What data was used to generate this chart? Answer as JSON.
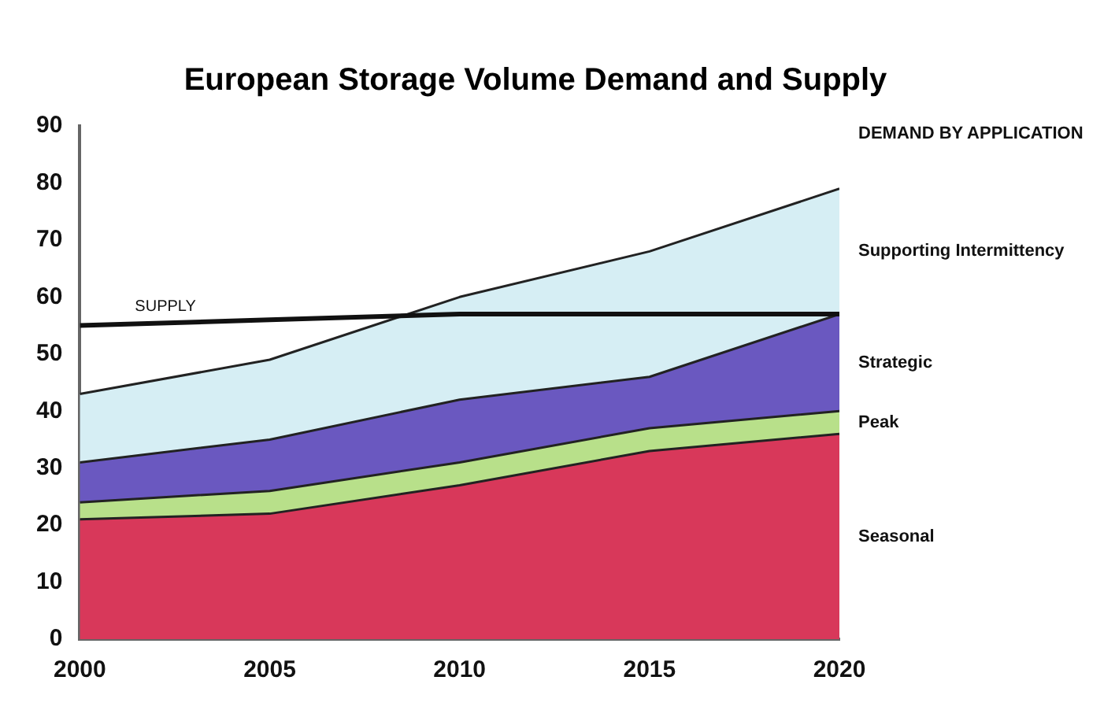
{
  "chart_data": {
    "type": "area",
    "title": "European Storage Volume Demand and Supply",
    "stacked": true,
    "x": [
      2000,
      2005,
      2010,
      2015,
      2020
    ],
    "series": [
      {
        "name": "Seasonal",
        "color": "#d8385a",
        "values": [
          21,
          22,
          27,
          33,
          36
        ]
      },
      {
        "name": "Peak",
        "color": "#b8e08a",
        "values": [
          3,
          4,
          4,
          4,
          4
        ]
      },
      {
        "name": "Strategic",
        "color": "#6a58c0",
        "values": [
          7,
          9,
          11,
          9,
          17
        ]
      },
      {
        "name": "Supporting Intermittency",
        "color": "#d6eef4",
        "values": [
          12,
          14,
          18,
          22,
          22
        ]
      },
      {
        "name": "SUPPLY",
        "type": "line",
        "color": "#111111",
        "values": [
          55,
          56,
          57,
          57,
          57
        ]
      }
    ],
    "annotations": [
      "DEMAND BY APPLICATION"
    ],
    "xlim": [
      2000,
      2020
    ],
    "xticks": [
      2000,
      2005,
      2010,
      2015,
      2020
    ],
    "ylim": [
      0,
      90
    ],
    "yticks": [
      0,
      10,
      20,
      30,
      40,
      50,
      60,
      70,
      80,
      90
    ],
    "grid": false,
    "legend": false
  }
}
